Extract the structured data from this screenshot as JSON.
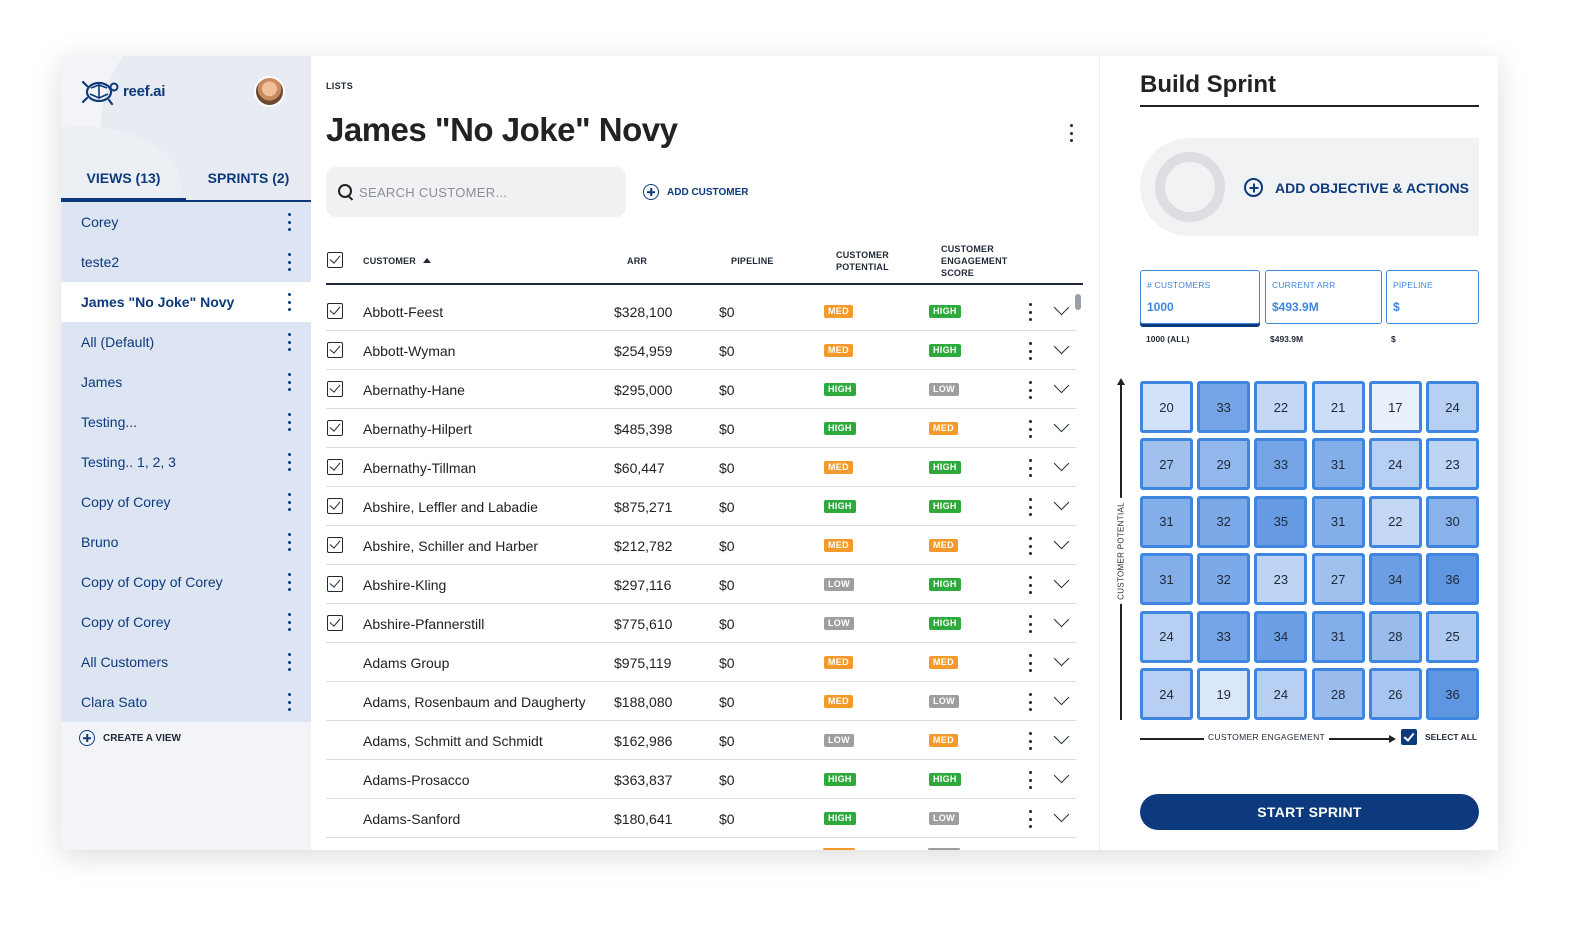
{
  "app": {
    "logo_text": "reef.ai"
  },
  "sidebar": {
    "tabs": [
      {
        "label": "VIEWS (13)",
        "active": true
      },
      {
        "label": "SPRINTS (2)",
        "active": false
      }
    ],
    "items": [
      {
        "label": "Corey",
        "active": false
      },
      {
        "label": "teste2",
        "active": false
      },
      {
        "label": "James \"No Joke\" Novy",
        "active": true
      },
      {
        "label": "All (Default)",
        "active": false
      },
      {
        "label": "James",
        "active": false
      },
      {
        "label": "Testing...",
        "active": false
      },
      {
        "label": "Testing.. 1, 2, 3",
        "active": false
      },
      {
        "label": "Copy of Corey",
        "active": false
      },
      {
        "label": "Bruno",
        "active": false
      },
      {
        "label": "Copy of Copy of Corey",
        "active": false
      },
      {
        "label": "Copy of Corey",
        "active": false
      },
      {
        "label": "All Customers",
        "active": false
      },
      {
        "label": "Clara Sato",
        "active": false
      }
    ],
    "create_view": "CREATE A VIEW"
  },
  "main": {
    "breadcrumb": "LISTS",
    "title": "James \"No Joke\" Novy",
    "search_placeholder": "SEARCH CUSTOMER...",
    "add_customer": "ADD CUSTOMER",
    "columns": {
      "customer": "CUSTOMER",
      "arr": "ARR",
      "pipeline": "PIPELINE",
      "potential": "CUSTOMER\nPOTENTIAL",
      "engagement": "CUSTOMER\nENGAGEMENT\nSCORE"
    },
    "rows": [
      {
        "checked": true,
        "name": "Abbott-Feest",
        "arr": "$328,100",
        "pipeline": "$0",
        "potential": "MED",
        "engagement": "HIGH"
      },
      {
        "checked": true,
        "name": "Abbott-Wyman",
        "arr": "$254,959",
        "pipeline": "$0",
        "potential": "MED",
        "engagement": "HIGH"
      },
      {
        "checked": true,
        "name": "Abernathy-Hane",
        "arr": "$295,000",
        "pipeline": "$0",
        "potential": "HIGH",
        "engagement": "LOW"
      },
      {
        "checked": true,
        "name": "Abernathy-Hilpert",
        "arr": "$485,398",
        "pipeline": "$0",
        "potential": "HIGH",
        "engagement": "MED"
      },
      {
        "checked": true,
        "name": "Abernathy-Tillman",
        "arr": "$60,447",
        "pipeline": "$0",
        "potential": "MED",
        "engagement": "HIGH"
      },
      {
        "checked": true,
        "name": "Abshire, Leffler and Labadie",
        "arr": "$875,271",
        "pipeline": "$0",
        "potential": "HIGH",
        "engagement": "HIGH"
      },
      {
        "checked": true,
        "name": "Abshire, Schiller and Harber",
        "arr": "$212,782",
        "pipeline": "$0",
        "potential": "MED",
        "engagement": "MED"
      },
      {
        "checked": true,
        "name": "Abshire-Kling",
        "arr": "$297,116",
        "pipeline": "$0",
        "potential": "LOW",
        "engagement": "HIGH"
      },
      {
        "checked": true,
        "name": "Abshire-Pfannerstill",
        "arr": "$775,610",
        "pipeline": "$0",
        "potential": "LOW",
        "engagement": "HIGH"
      },
      {
        "checked": false,
        "name": "Adams Group",
        "arr": "$975,119",
        "pipeline": "$0",
        "potential": "MED",
        "engagement": "MED"
      },
      {
        "checked": false,
        "name": "Adams, Rosenbaum and Daugherty",
        "arr": "$188,080",
        "pipeline": "$0",
        "potential": "MED",
        "engagement": "LOW"
      },
      {
        "checked": false,
        "name": "Adams, Schmitt and Schmidt",
        "arr": "$162,986",
        "pipeline": "$0",
        "potential": "LOW",
        "engagement": "MED"
      },
      {
        "checked": false,
        "name": "Adams-Prosacco",
        "arr": "$363,837",
        "pipeline": "$0",
        "potential": "HIGH",
        "engagement": "HIGH"
      },
      {
        "checked": false,
        "name": "Adams-Sanford",
        "arr": "$180,641",
        "pipeline": "$0",
        "potential": "HIGH",
        "engagement": "LOW"
      }
    ]
  },
  "sprint": {
    "title": "Build Sprint",
    "add_objective": "ADD OBJECTIVE & ACTIONS",
    "stats": [
      {
        "label": "# CUSTOMERS",
        "value": "1000",
        "sub": "1000 (ALL)",
        "active": true
      },
      {
        "label": "CURRENT ARR",
        "value": "$493.9M",
        "sub": "$493.9M",
        "active": false
      },
      {
        "label": "PIPELINE",
        "value": "$",
        "sub": "$",
        "active": false
      }
    ],
    "y_axis_label": "CUSTOMER POTENTIAL",
    "x_axis_label": "CUSTOMER ENGAGEMENT",
    "select_all": "SELECT ALL",
    "grid": [
      [
        20,
        33,
        22,
        21,
        17,
        24
      ],
      [
        27,
        29,
        33,
        31,
        24,
        23
      ],
      [
        31,
        32,
        35,
        31,
        22,
        30
      ],
      [
        31,
        32,
        23,
        27,
        34,
        36
      ],
      [
        24,
        33,
        34,
        31,
        28,
        25
      ],
      [
        24,
        19,
        24,
        28,
        26,
        36
      ]
    ],
    "start_button": "START SPRINT"
  },
  "colors": {
    "brand": "#0d3a7d",
    "accent": "#3f86e0",
    "high": "#2daa3b",
    "med": "#f39a2b",
    "low": "#9e9e9e"
  }
}
